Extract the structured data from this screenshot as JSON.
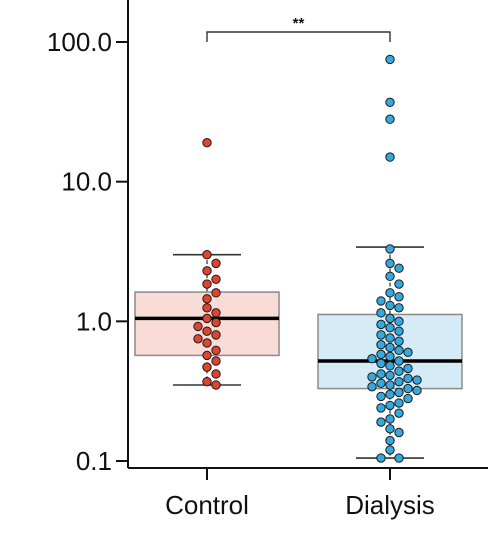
{
  "chart_data": {
    "type": "box",
    "title": "",
    "xlabel": "",
    "ylabel": "",
    "yscale": "log",
    "ylim": [
      0.085,
      140
    ],
    "yticks": [
      0.1,
      1.0,
      10.0,
      100.0
    ],
    "ytick_labels": [
      "0.1",
      "1.0",
      "10.0",
      "100.0"
    ],
    "grid": false,
    "categories": [
      "Control",
      "Dialysis"
    ],
    "significance": {
      "label": "**",
      "between": [
        "Control",
        "Dialysis"
      ],
      "y": 100
    },
    "series": [
      {
        "category": "Control",
        "fill": "#fadcd6",
        "point_color": "#e0442f",
        "box": {
          "q1": 0.57,
          "median": 1.05,
          "q3": 1.62,
          "whisker_low": 0.35,
          "whisker_high": 3.0
        },
        "points": [
          19.0,
          3.0,
          2.6,
          2.3,
          2.0,
          1.85,
          1.6,
          1.45,
          1.25,
          1.15,
          1.05,
          0.98,
          0.92,
          0.85,
          0.8,
          0.75,
          0.7,
          0.62,
          0.57,
          0.52,
          0.47,
          0.42,
          0.37,
          0.35
        ]
      },
      {
        "category": "Dialysis",
        "fill": "#d5ebf6",
        "point_color": "#35a8dd",
        "box": {
          "q1": 0.33,
          "median": 0.52,
          "q3": 1.12,
          "whisker_low": 0.105,
          "whisker_high": 3.4
        },
        "points": [
          75.0,
          37.0,
          28.0,
          15.0,
          3.3,
          2.6,
          2.4,
          2.1,
          1.85,
          1.6,
          1.5,
          1.4,
          1.3,
          1.25,
          1.15,
          1.05,
          1.0,
          0.95,
          0.9,
          0.85,
          0.8,
          0.76,
          0.72,
          0.68,
          0.65,
          0.62,
          0.6,
          0.58,
          0.56,
          0.54,
          0.52,
          0.5,
          0.48,
          0.46,
          0.44,
          0.42,
          0.41,
          0.4,
          0.39,
          0.38,
          0.37,
          0.36,
          0.35,
          0.34,
          0.33,
          0.32,
          0.31,
          0.3,
          0.29,
          0.28,
          0.26,
          0.25,
          0.24,
          0.22,
          0.2,
          0.19,
          0.17,
          0.16,
          0.14,
          0.12,
          0.105,
          0.105
        ]
      }
    ]
  }
}
